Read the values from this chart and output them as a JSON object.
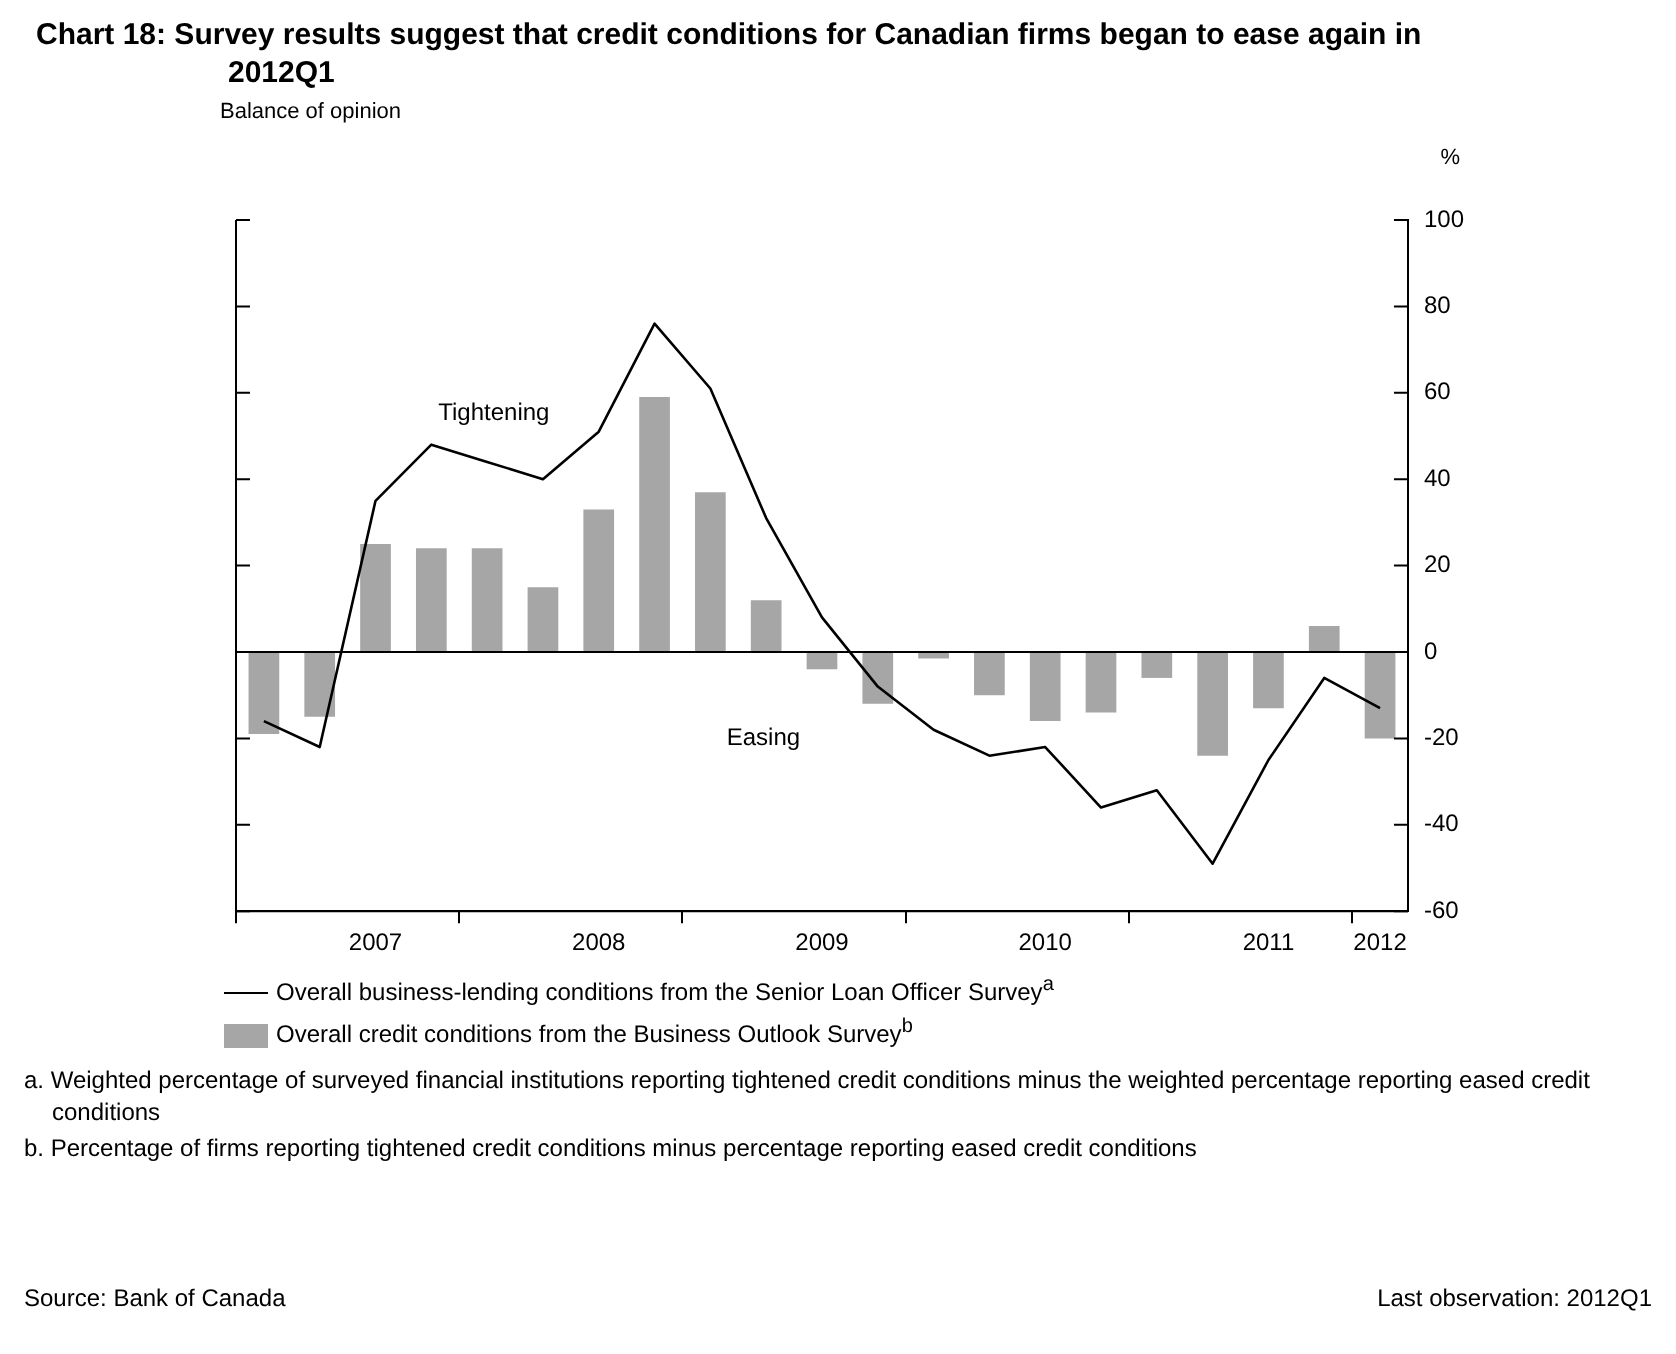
{
  "chart_data": {
    "type": "bar",
    "title": "Chart 18: Survey results suggest that credit conditions for Canadian firms began to ease again in 2012Q1",
    "subtitle": "Balance of opinion",
    "ylabel": "%",
    "categories": [
      null,
      null,
      "2007",
      null,
      null,
      null,
      "2008",
      null,
      null,
      null,
      "2009",
      null,
      null,
      null,
      "2010",
      null,
      null,
      null,
      "2011",
      null,
      "2012"
    ],
    "series": [
      {
        "name": "Overall business-lending conditions from the Senior Loan Officer Survey$^{a}$",
        "type": "line",
        "color": "#000000",
        "values": [
          -16,
          -22,
          35,
          48,
          44,
          40,
          51,
          76,
          61,
          31,
          8,
          -8,
          -18,
          -24,
          -22,
          -36,
          -32,
          -49,
          -25,
          -6,
          -13
        ]
      },
      {
        "name": "Overall credit conditions from the Business Outlook Survey$^{b}$",
        "color": "#a6a6a6",
        "values": [
          -19,
          -15,
          25,
          24,
          24,
          15,
          33,
          59,
          37,
          12,
          -4,
          -12,
          -1.5,
          -10,
          -16,
          -14,
          -6,
          -24,
          -13,
          6,
          -20
        ]
      }
    ],
    "ylim": [
      -60,
      100
    ],
    "yticks": [
      -60,
      -40,
      -20,
      0,
      20,
      40,
      60,
      80,
      100
    ],
    "ref_lines": [
      {
        "axis": "y",
        "value": 0
      }
    ],
    "legend": "bottom",
    "marker": "none",
    "line_style": "solid",
    "annotations": [
      "Tightening",
      "Easing",
      "a. Weighted percentage of surveyed financial institutions reporting tightened credit conditions minus the weighted percentage reporting eased credit conditions",
      "b. Percentage of firms reporting tightened credit conditions minus percentage reporting eased credit conditions",
      "Source: Bank of Canada",
      "Last observation: 2012Q1"
    ]
  }
}
